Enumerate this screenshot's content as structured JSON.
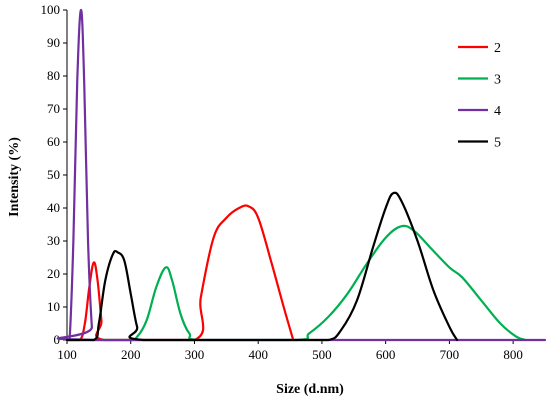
{
  "chart_data": {
    "type": "line",
    "title": "",
    "xlabel": "Size (d.nm)",
    "ylabel": "Intensity (%)",
    "xlim": [
      100,
      850
    ],
    "ylim": [
      0,
      100
    ],
    "xticks": [
      100,
      200,
      300,
      400,
      500,
      600,
      700,
      800
    ],
    "yticks": [
      0,
      10,
      20,
      30,
      40,
      50,
      60,
      70,
      80,
      90,
      100
    ],
    "grid": false,
    "legend_position": "top-right",
    "series": [
      {
        "name": "2",
        "color": "#ff0000",
        "points": [
          [
            100,
            0
          ],
          [
            120,
            0
          ],
          [
            128,
            5
          ],
          [
            135,
            16
          ],
          [
            142,
            23.5
          ],
          [
            148,
            18
          ],
          [
            154,
            6
          ],
          [
            158,
            0
          ],
          [
            300,
            0
          ],
          [
            310,
            13
          ],
          [
            330,
            31
          ],
          [
            350,
            37
          ],
          [
            370,
            40
          ],
          [
            385,
            40.5
          ],
          [
            400,
            37
          ],
          [
            420,
            24
          ],
          [
            440,
            10
          ],
          [
            455,
            0
          ]
        ]
      },
      {
        "name": "3",
        "color": "#00b050",
        "points": [
          [
            100,
            0
          ],
          [
            195,
            0
          ],
          [
            210,
            1
          ],
          [
            225,
            6
          ],
          [
            240,
            16
          ],
          [
            255,
            22
          ],
          [
            265,
            18
          ],
          [
            278,
            8
          ],
          [
            292,
            2
          ],
          [
            310,
            0
          ],
          [
            460,
            0
          ],
          [
            480,
            2
          ],
          [
            510,
            7
          ],
          [
            540,
            14
          ],
          [
            570,
            23
          ],
          [
            600,
            31
          ],
          [
            625,
            34.5
          ],
          [
            645,
            33
          ],
          [
            670,
            28
          ],
          [
            700,
            22
          ],
          [
            720,
            19
          ],
          [
            750,
            12
          ],
          [
            780,
            5
          ],
          [
            805,
            1
          ],
          [
            820,
            0
          ]
        ]
      },
      {
        "name": "4",
        "color": "#7030a0",
        "points": [
          [
            100,
            0
          ],
          [
            104,
            0
          ],
          [
            110,
            30
          ],
          [
            116,
            78
          ],
          [
            122,
            100
          ],
          [
            127,
            78
          ],
          [
            133,
            30
          ],
          [
            139,
            4
          ],
          [
            143,
            0
          ],
          [
            850,
            0
          ]
        ]
      },
      {
        "name": "5",
        "color": "#000000",
        "points": [
          [
            100,
            0
          ],
          [
            142,
            0
          ],
          [
            150,
            5
          ],
          [
            160,
            18
          ],
          [
            172,
            26
          ],
          [
            180,
            26.5
          ],
          [
            190,
            24
          ],
          [
            200,
            14
          ],
          [
            210,
            4
          ],
          [
            220,
            0
          ],
          [
            460,
            0
          ],
          [
            510,
            0
          ],
          [
            530,
            3
          ],
          [
            555,
            12
          ],
          [
            580,
            28
          ],
          [
            600,
            40
          ],
          [
            612,
            44.5
          ],
          [
            625,
            42
          ],
          [
            650,
            30
          ],
          [
            675,
            15
          ],
          [
            700,
            4
          ],
          [
            712,
            0
          ]
        ]
      }
    ]
  }
}
